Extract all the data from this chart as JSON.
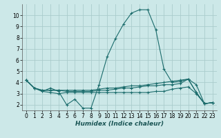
{
  "xlabel": "Humidex (Indice chaleur)",
  "background_color": "#cce8e8",
  "grid_color": "#aacccc",
  "line_color": "#1a6b6b",
  "lines": [
    {
      "x": [
        0,
        1,
        2,
        3,
        4,
        5,
        6,
        7,
        8,
        9,
        10,
        11,
        12,
        13,
        14,
        15,
        16,
        17,
        18,
        19,
        20,
        21,
        22,
        23
      ],
      "y": [
        4.2,
        3.5,
        3.2,
        3.5,
        3.2,
        2.0,
        2.5,
        1.7,
        1.7,
        3.8,
        6.3,
        7.9,
        9.2,
        10.2,
        10.5,
        10.5,
        8.7,
        5.2,
        4.0,
        4.1,
        4.3,
        3.1,
        2.1,
        2.2
      ]
    },
    {
      "x": [
        0,
        1,
        2,
        3,
        4,
        5,
        6,
        7,
        8,
        9,
        10,
        11,
        12,
        13,
        14,
        15,
        16,
        17,
        18,
        19,
        20,
        21,
        22,
        23
      ],
      "y": [
        4.2,
        3.5,
        3.3,
        3.3,
        3.3,
        3.3,
        3.3,
        3.3,
        3.3,
        3.4,
        3.5,
        3.5,
        3.6,
        3.7,
        3.7,
        3.8,
        3.9,
        4.0,
        4.1,
        4.2,
        4.3,
        3.8,
        2.1,
        2.2
      ]
    },
    {
      "x": [
        0,
        1,
        2,
        3,
        4,
        5,
        6,
        7,
        8,
        9,
        10,
        11,
        12,
        13,
        14,
        15,
        16,
        17,
        18,
        19,
        20,
        21,
        22,
        23
      ],
      "y": [
        4.2,
        3.5,
        3.3,
        3.3,
        3.3,
        3.2,
        3.2,
        3.2,
        3.2,
        3.3,
        3.3,
        3.4,
        3.5,
        3.5,
        3.6,
        3.7,
        3.7,
        3.8,
        3.8,
        3.9,
        4.3,
        3.1,
        2.1,
        2.2
      ]
    },
    {
      "x": [
        0,
        1,
        2,
        3,
        4,
        5,
        6,
        7,
        8,
        9,
        10,
        11,
        12,
        13,
        14,
        15,
        16,
        17,
        18,
        19,
        20,
        21,
        22,
        23
      ],
      "y": [
        4.2,
        3.5,
        3.2,
        3.1,
        3.0,
        3.1,
        3.1,
        3.1,
        3.1,
        3.1,
        3.1,
        3.1,
        3.1,
        3.1,
        3.1,
        3.1,
        3.2,
        3.2,
        3.4,
        3.5,
        3.6,
        3.0,
        2.1,
        2.2
      ]
    }
  ],
  "xlim": [
    -0.5,
    23.5
  ],
  "ylim": [
    1.5,
    11.0
  ],
  "yticks": [
    2,
    3,
    4,
    5,
    6,
    7,
    8,
    9,
    10
  ],
  "xticks": [
    0,
    1,
    2,
    3,
    4,
    5,
    6,
    7,
    8,
    9,
    10,
    11,
    12,
    13,
    14,
    15,
    16,
    17,
    18,
    19,
    20,
    21,
    22,
    23
  ],
  "tick_fontsize": 5.5,
  "xlabel_fontsize": 6.5
}
